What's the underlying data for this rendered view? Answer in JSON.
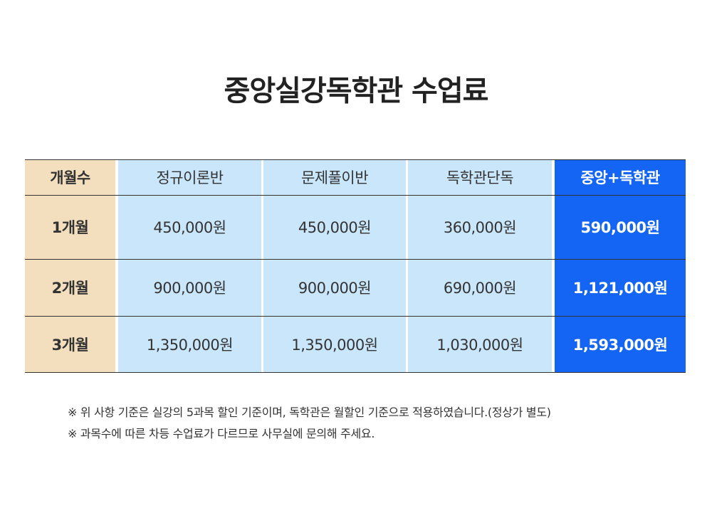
{
  "title": "중앙실강독학관 수업료",
  "table": {
    "header": [
      "개월수",
      "정규이론반",
      "문제풀이반",
      "독학관단독",
      "중앙+독학관"
    ],
    "rows": [
      [
        "1개월",
        "450,000원",
        "450,000원",
        "360,000원",
        "590,000원"
      ],
      [
        "2개월",
        "900,000원",
        "900,000원",
        "690,000원",
        "1,121,000원"
      ],
      [
        "3개월",
        "1,350,000원",
        "1,350,000원",
        "1,030,000원",
        "1,593,000원"
      ]
    ]
  },
  "notes": [
    "※ 위 사항 기준은 실강의 5과목 할인 기준이며, 독학관은 월할인 기준으로 적용하였습니다.(정상가 별도)",
    "※ 과목수에 따른 차등 수업료가 다르므로 사무실에 문의해 주세요."
  ]
}
